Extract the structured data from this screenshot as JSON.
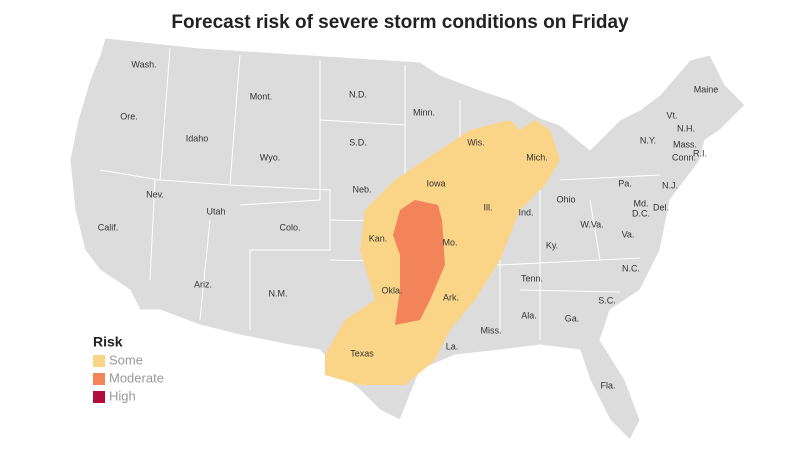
{
  "title": "Forecast risk of severe storm conditions on Friday",
  "legend": {
    "title": "Risk",
    "items": [
      {
        "label": "Some",
        "color": "#fad587"
      },
      {
        "label": "Moderate",
        "color": "#f3845a"
      },
      {
        "label": "High",
        "color": "#b20d3c"
      }
    ]
  },
  "states": [
    "Wash.",
    "Ore.",
    "Idaho",
    "Mont.",
    "Wyo.",
    "N.D.",
    "S.D.",
    "Neb.",
    "Minn.",
    "Wis.",
    "Mich.",
    "Iowa",
    "Ill.",
    "Ind.",
    "Ohio",
    "Nev.",
    "Utah",
    "Colo.",
    "Calif.",
    "Kan.",
    "Mo.",
    "Ky.",
    "W.Va.",
    "Va.",
    "Md.",
    "D.C.",
    "Del.",
    "Pa.",
    "N.J.",
    "N.Y.",
    "Vt.",
    "N.H.",
    "Mass.",
    "Conn.",
    "R.I.",
    "Maine",
    "Ariz.",
    "N.M.",
    "Okla.",
    "Ark.",
    "Tenn.",
    "N.C.",
    "S.C.",
    "Ga.",
    "Ala.",
    "Miss.",
    "La.",
    "Texas",
    "Fla."
  ]
}
